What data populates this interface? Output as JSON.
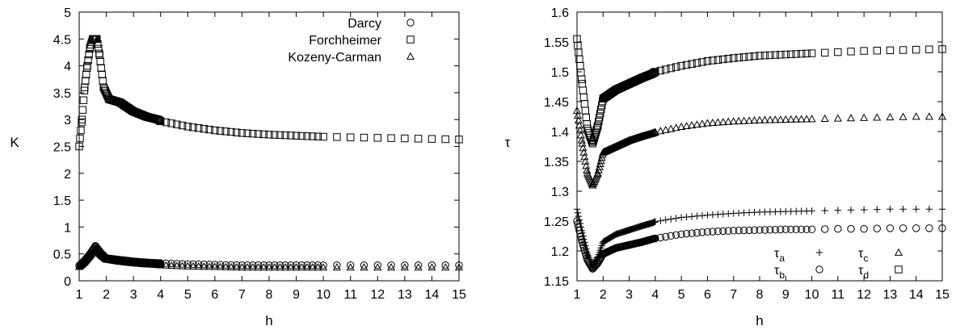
{
  "chart_data": [
    {
      "type": "scatter",
      "xlabel": "h",
      "ylabel": "K",
      "xlim": [
        1,
        15
      ],
      "ylim": [
        0,
        5
      ],
      "xticks": [
        "1",
        "2",
        "3",
        "4",
        "5",
        "6",
        "7",
        "8",
        "9",
        "10",
        "11",
        "12",
        "13",
        "14",
        "15"
      ],
      "yticks": [
        "0",
        "0.5",
        "1",
        "1.5",
        "2",
        "2.5",
        "3",
        "3.5",
        "4",
        "4.5",
        "5"
      ],
      "legend_position": "top-right",
      "series": [
        {
          "name": "Darcy",
          "marker": "circle",
          "points": [
            [
              1,
              0.28
            ],
            [
              1.2,
              0.38
            ],
            [
              1.4,
              0.5
            ],
            [
              1.6,
              0.65
            ],
            [
              1.8,
              0.52
            ],
            [
              2,
              0.42
            ],
            [
              2.5,
              0.39
            ],
            [
              3,
              0.36
            ],
            [
              3.5,
              0.34
            ],
            [
              3.9,
              0.33
            ],
            [
              4,
              0.33
            ],
            [
              5,
              0.31
            ],
            [
              6,
              0.3
            ],
            [
              7,
              0.29
            ],
            [
              8,
              0.29
            ],
            [
              9,
              0.29
            ],
            [
              10,
              0.29
            ],
            [
              11,
              0.29
            ],
            [
              12,
              0.29
            ],
            [
              13,
              0.29
            ],
            [
              14,
              0.29
            ],
            [
              15,
              0.29
            ]
          ]
        },
        {
          "name": "Forchheimer",
          "marker": "square",
          "points": [
            [
              1,
              2.5
            ],
            [
              1.1,
              3.0
            ],
            [
              1.2,
              3.6
            ],
            [
              1.3,
              4.0
            ],
            [
              1.4,
              4.35
            ],
            [
              1.5,
              4.5
            ],
            [
              1.65,
              4.5
            ],
            [
              1.75,
              4.2
            ],
            [
              1.9,
              3.6
            ],
            [
              2.1,
              3.38
            ],
            [
              2.5,
              3.32
            ],
            [
              3,
              3.15
            ],
            [
              3.5,
              3.05
            ],
            [
              3.9,
              3.0
            ],
            [
              4,
              2.97
            ],
            [
              5,
              2.87
            ],
            [
              6,
              2.8
            ],
            [
              7,
              2.75
            ],
            [
              8,
              2.72
            ],
            [
              9,
              2.7
            ],
            [
              10,
              2.68
            ],
            [
              11,
              2.67
            ],
            [
              12,
              2.66
            ],
            [
              13,
              2.65
            ],
            [
              14,
              2.64
            ],
            [
              15,
              2.63
            ]
          ]
        },
        {
          "name": "Kozeny-Carman",
          "marker": "triangle",
          "points": [
            [
              1,
              0.26
            ],
            [
              1.2,
              0.35
            ],
            [
              1.4,
              0.47
            ],
            [
              1.6,
              0.6
            ],
            [
              1.8,
              0.48
            ],
            [
              2,
              0.4
            ],
            [
              2.5,
              0.36
            ],
            [
              3,
              0.33
            ],
            [
              3.5,
              0.31
            ],
            [
              3.9,
              0.3
            ],
            [
              4,
              0.29
            ],
            [
              5,
              0.27
            ],
            [
              6,
              0.26
            ],
            [
              7,
              0.25
            ],
            [
              8,
              0.25
            ],
            [
              9,
              0.25
            ],
            [
              10,
              0.25
            ],
            [
              11,
              0.25
            ],
            [
              12,
              0.25
            ],
            [
              13,
              0.25
            ],
            [
              14,
              0.25
            ],
            [
              15,
              0.25
            ]
          ]
        }
      ]
    },
    {
      "type": "scatter",
      "xlabel": "h",
      "ylabel": "τ",
      "xlim": [
        1,
        15
      ],
      "ylim": [
        1.15,
        1.6
      ],
      "xticks": [
        "1",
        "2",
        "3",
        "4",
        "5",
        "6",
        "7",
        "8",
        "9",
        "10",
        "11",
        "12",
        "13",
        "14",
        "15"
      ],
      "yticks": [
        "1.15",
        "1.2",
        "1.25",
        "1.3",
        "1.35",
        "1.4",
        "1.45",
        "1.5",
        "1.55",
        "1.6"
      ],
      "legend_position": "bottom-right",
      "series": [
        {
          "name": "τa",
          "label_base": "τ",
          "label_sub": "a",
          "marker": "plus",
          "points": [
            [
              1,
              1.27
            ],
            [
              1.2,
              1.23
            ],
            [
              1.4,
              1.195
            ],
            [
              1.6,
              1.175
            ],
            [
              1.8,
              1.19
            ],
            [
              2,
              1.215
            ],
            [
              2.5,
              1.228
            ],
            [
              3,
              1.235
            ],
            [
              3.5,
              1.242
            ],
            [
              3.9,
              1.247
            ],
            [
              4,
              1.249
            ],
            [
              5,
              1.256
            ],
            [
              6,
              1.26
            ],
            [
              7,
              1.263
            ],
            [
              8,
              1.265
            ],
            [
              9,
              1.266
            ],
            [
              10,
              1.267
            ],
            [
              11,
              1.268
            ],
            [
              12,
              1.269
            ],
            [
              13,
              1.27
            ],
            [
              14,
              1.27
            ],
            [
              15,
              1.27
            ]
          ]
        },
        {
          "name": "τb",
          "label_base": "τ",
          "label_sub": "b",
          "marker": "circle",
          "points": [
            [
              1,
              1.25
            ],
            [
              1.2,
              1.215
            ],
            [
              1.4,
              1.185
            ],
            [
              1.6,
              1.17
            ],
            [
              1.8,
              1.18
            ],
            [
              2,
              1.195
            ],
            [
              2.5,
              1.205
            ],
            [
              3,
              1.21
            ],
            [
              3.5,
              1.215
            ],
            [
              3.9,
              1.22
            ],
            [
              4,
              1.221
            ],
            [
              5,
              1.228
            ],
            [
              6,
              1.232
            ],
            [
              7,
              1.234
            ],
            [
              8,
              1.235
            ],
            [
              9,
              1.236
            ],
            [
              10,
              1.236
            ],
            [
              11,
              1.237
            ],
            [
              12,
              1.237
            ],
            [
              13,
              1.238
            ],
            [
              14,
              1.238
            ],
            [
              15,
              1.238
            ]
          ]
        },
        {
          "name": "τc",
          "label_base": "τ",
          "label_sub": "c",
          "marker": "triangle",
          "points": [
            [
              1,
              1.435
            ],
            [
              1.2,
              1.38
            ],
            [
              1.4,
              1.33
            ],
            [
              1.6,
              1.31
            ],
            [
              1.8,
              1.33
            ],
            [
              2,
              1.365
            ],
            [
              2.5,
              1.375
            ],
            [
              3,
              1.385
            ],
            [
              3.5,
              1.392
            ],
            [
              3.9,
              1.397
            ],
            [
              4,
              1.399
            ],
            [
              5,
              1.408
            ],
            [
              6,
              1.414
            ],
            [
              7,
              1.417
            ],
            [
              8,
              1.419
            ],
            [
              9,
              1.42
            ],
            [
              10,
              1.421
            ],
            [
              11,
              1.422
            ],
            [
              12,
              1.423
            ],
            [
              13,
              1.424
            ],
            [
              14,
              1.425
            ],
            [
              15,
              1.425
            ]
          ]
        },
        {
          "name": "τd",
          "label_base": "τ",
          "label_sub": "d",
          "marker": "square",
          "points": [
            [
              1,
              1.555
            ],
            [
              1.2,
              1.48
            ],
            [
              1.4,
              1.405
            ],
            [
              1.6,
              1.38
            ],
            [
              1.8,
              1.41
            ],
            [
              2,
              1.455
            ],
            [
              2.5,
              1.47
            ],
            [
              3,
              1.48
            ],
            [
              3.5,
              1.49
            ],
            [
              3.9,
              1.497
            ],
            [
              4,
              1.5
            ],
            [
              5,
              1.51
            ],
            [
              6,
              1.518
            ],
            [
              7,
              1.523
            ],
            [
              8,
              1.527
            ],
            [
              9,
              1.529
            ],
            [
              10,
              1.531
            ],
            [
              11,
              1.533
            ],
            [
              12,
              1.535
            ],
            [
              13,
              1.536
            ],
            [
              14,
              1.537
            ],
            [
              15,
              1.538
            ]
          ]
        }
      ]
    }
  ]
}
